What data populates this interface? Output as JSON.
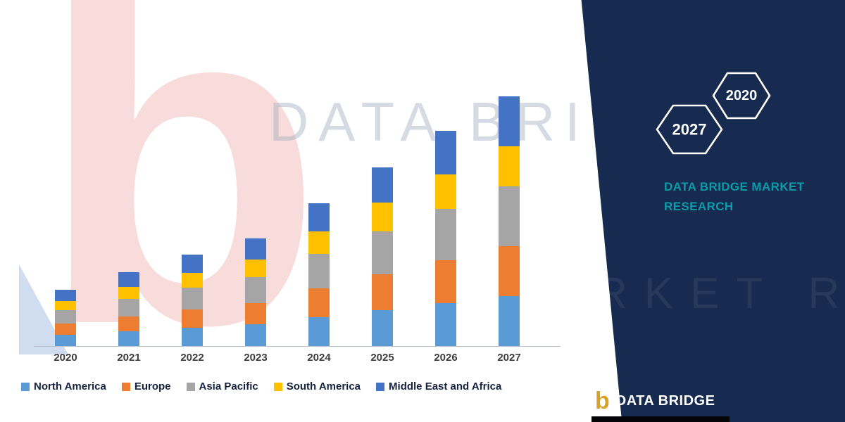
{
  "watermarks": {
    "line1": "DATA BRIDGE",
    "line2": "MARKET RESEARCH"
  },
  "brand": {
    "logo_letter": "b",
    "hexagons": [
      {
        "label": "2027"
      },
      {
        "label": "2020"
      }
    ],
    "title_line1": "DATA BRIDGE MARKET",
    "title_line2": "RESEARCH",
    "footer_text": "DATA BRIDGE",
    "colors": {
      "panel_navy": "#172A4F",
      "accent_teal": "#0A9DA8",
      "logo_gold": "#D7A229"
    }
  },
  "chart_data": {
    "type": "bar",
    "stacked": true,
    "title": "",
    "xlabel": "",
    "ylabel": "",
    "units": "relative (no y-axis scale shown in image)",
    "categories": [
      "2020",
      "2021",
      "2022",
      "2023",
      "2024",
      "2025",
      "2026",
      "2027"
    ],
    "series": [
      {
        "name": "North America",
        "color": "#5B9BD5",
        "values": [
          16,
          21,
          26,
          31,
          41,
          51,
          61,
          71
        ]
      },
      {
        "name": "Europe",
        "color": "#ED7D31",
        "values": [
          16,
          21,
          26,
          30,
          41,
          51,
          61,
          71
        ]
      },
      {
        "name": "Asia Pacific",
        "color": "#A5A5A5",
        "values": [
          19,
          25,
          31,
          37,
          49,
          61,
          73,
          85
        ]
      },
      {
        "name": "South America",
        "color": "#FFC000",
        "values": [
          13,
          17,
          21,
          25,
          32,
          41,
          49,
          57
        ]
      },
      {
        "name": "Middle East and Africa",
        "color": "#4472C4",
        "values": [
          16,
          21,
          26,
          30,
          40,
          50,
          62,
          71
        ]
      }
    ],
    "bar_totals": [
      80,
      105,
      130,
      153,
      203,
      254,
      306,
      355
    ],
    "legend_position": "bottom",
    "grid": false
  }
}
